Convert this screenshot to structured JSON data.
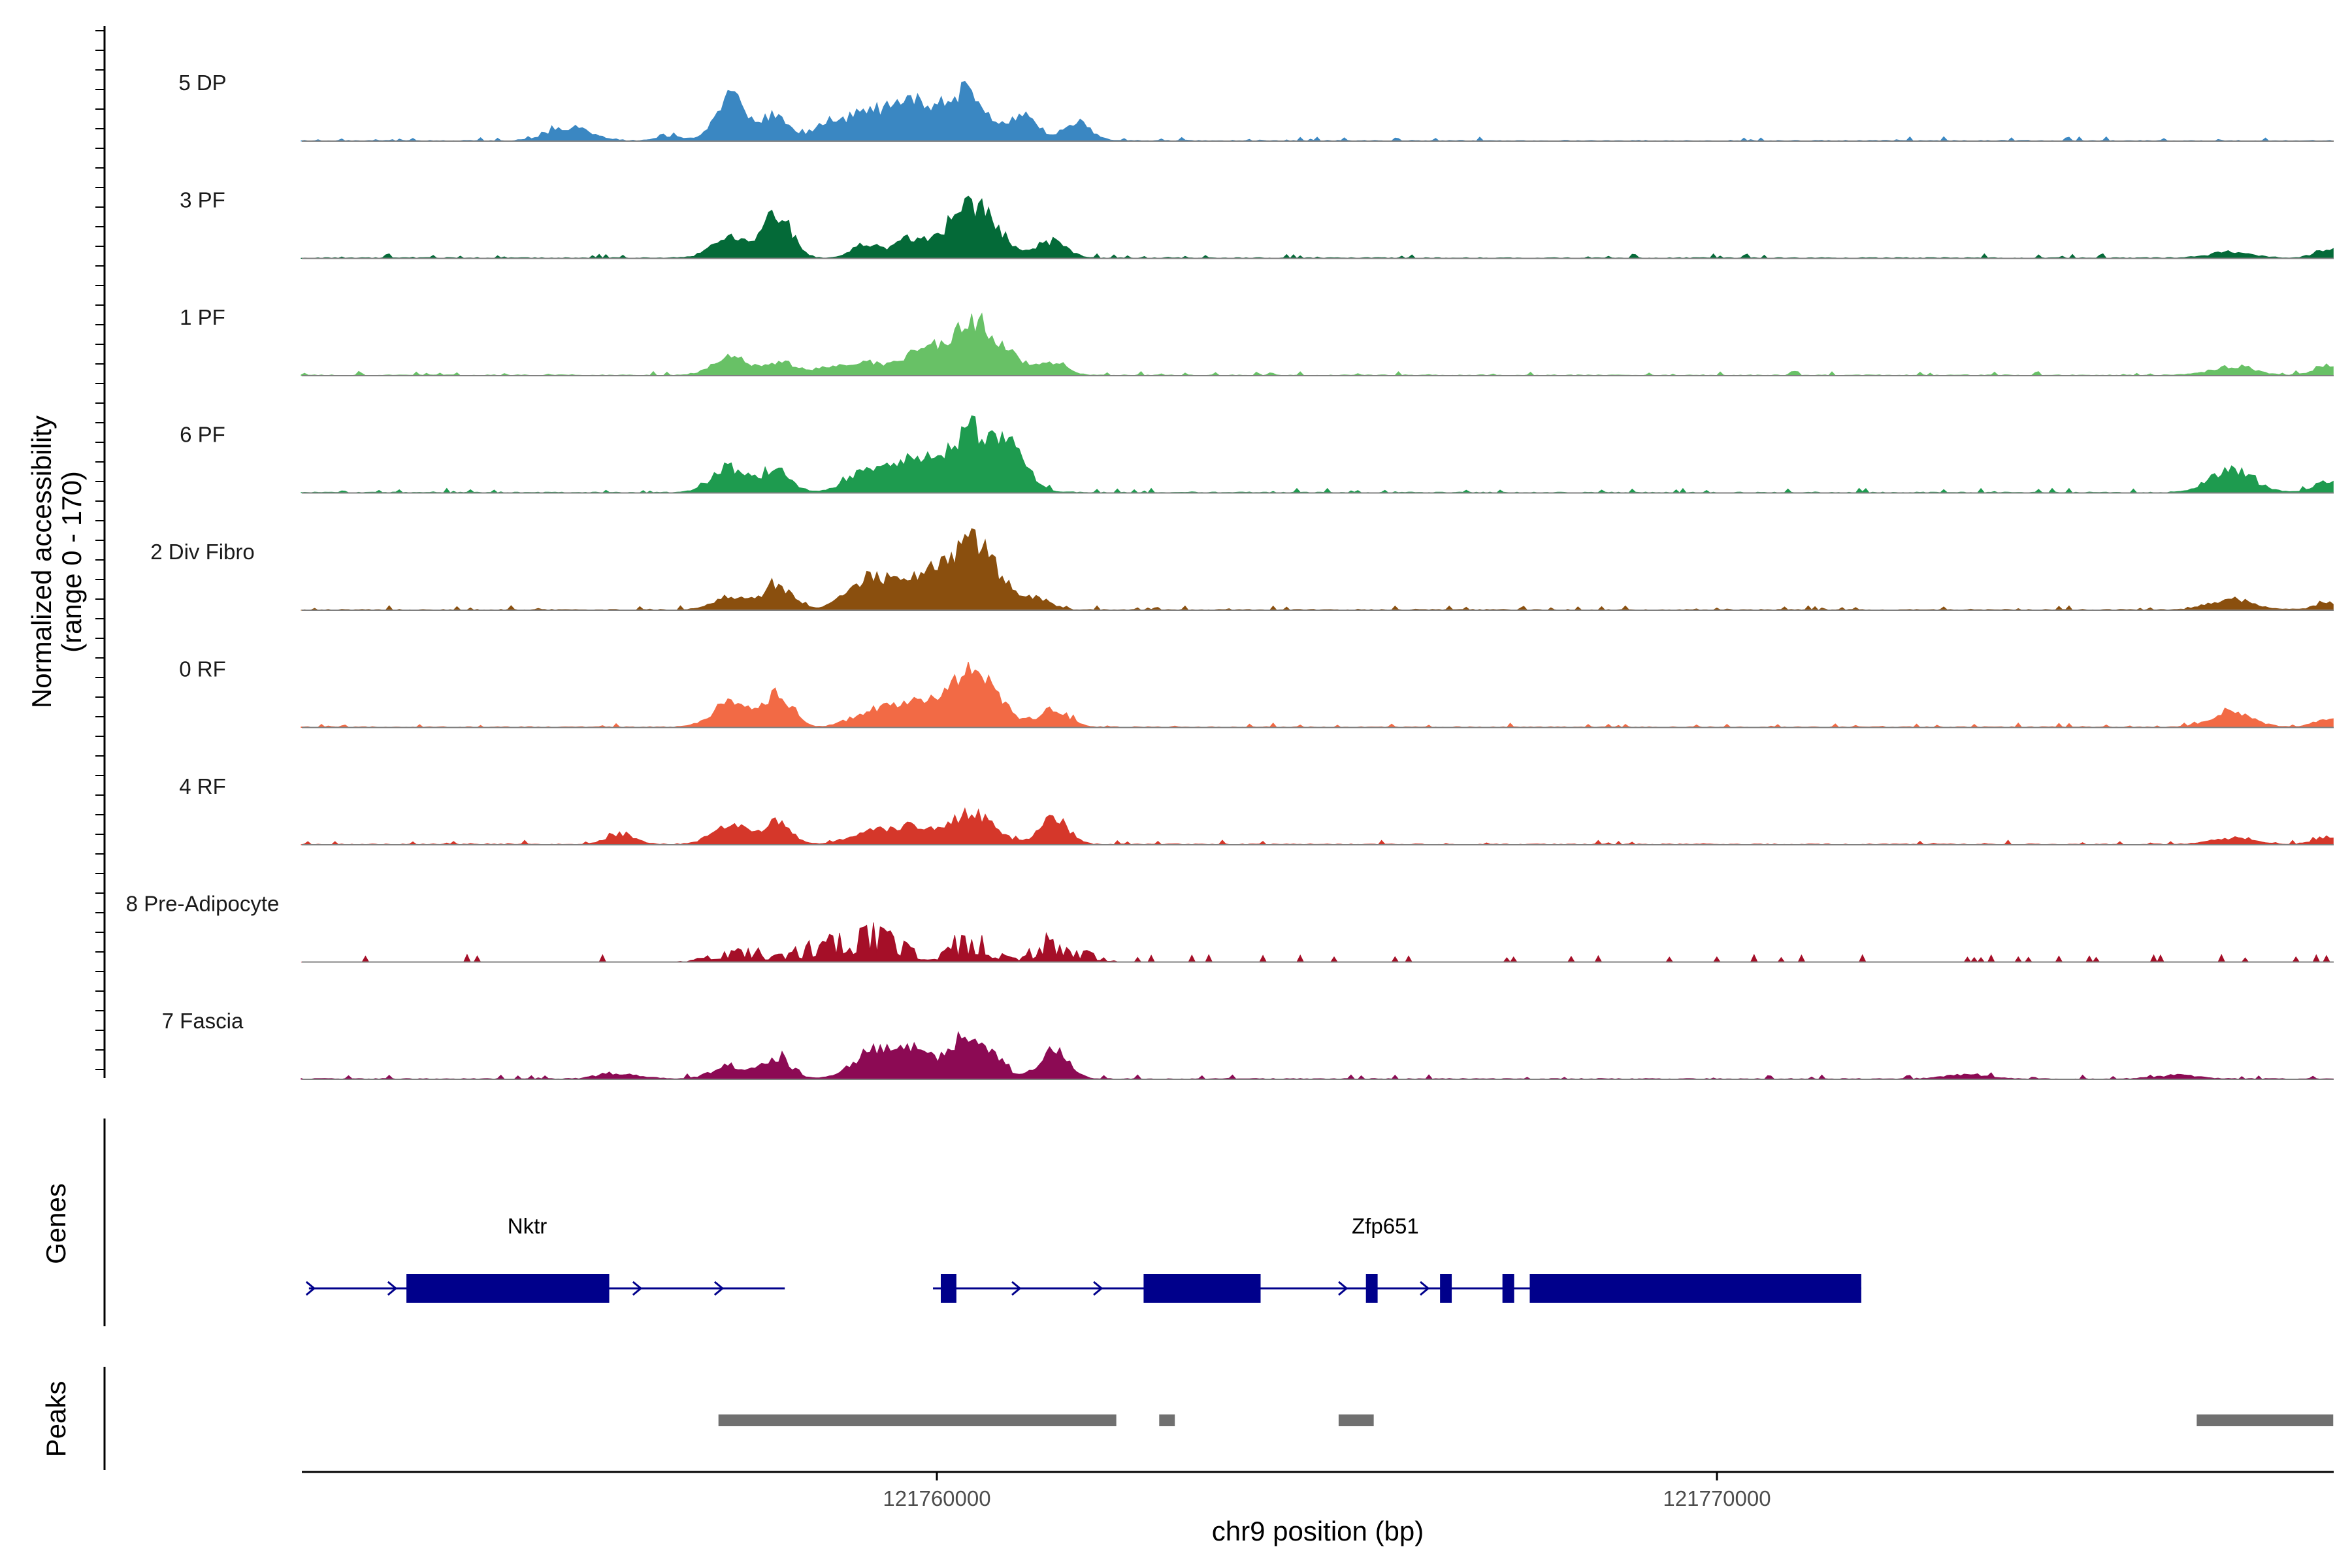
{
  "chart_data": {
    "type": "area",
    "title": "",
    "region": {
      "chromosome": "chr9",
      "start": 121751850,
      "end": 121777900
    },
    "xlabel": "chr9 position (bp)",
    "x_ticks": [
      {
        "value": 121760000,
        "label": "121760000"
      },
      {
        "value": 121770000,
        "label": "121770000"
      }
    ],
    "coverage_ylabel": "Normalized accessibility\n(range 0 - 170)",
    "coverage_ylim": [
      0,
      170
    ],
    "genes_ylabel": "Genes",
    "peaks_ylabel": "Peaks",
    "tracks": [
      {
        "name": "5 DP",
        "color": "#3a87c2",
        "scale": 1.0,
        "peaks": [
          [
            121755300,
            110,
            3
          ],
          [
            121756600,
            34,
            2
          ],
          [
            121757350,
            380,
            2
          ],
          [
            121757900,
            210,
            2
          ],
          [
            121758600,
            150,
            2
          ],
          [
            121759150,
            250,
            3
          ],
          [
            121759700,
            300,
            2.5
          ],
          [
            121760350,
            420,
            3
          ],
          [
            121761100,
            200,
            2
          ],
          [
            121761800,
            150,
            2
          ]
        ]
      },
      {
        "name": "3 PF",
        "color": "#046a38",
        "scale": 1.0,
        "peaks": [
          [
            121757350,
            180,
            2.5
          ],
          [
            121757950,
            365,
            2
          ],
          [
            121759100,
            120,
            2
          ],
          [
            121759650,
            150,
            2
          ],
          [
            121760450,
            460,
            3.5
          ],
          [
            121761500,
            130,
            2
          ],
          [
            121776600,
            50,
            3
          ],
          [
            121777850,
            70,
            2
          ]
        ]
      },
      {
        "name": "1 PF",
        "color": "#68c166",
        "scale": 1.0,
        "peaks": [
          [
            121757350,
            150,
            2.5
          ],
          [
            121757950,
            110,
            2
          ],
          [
            121758600,
            60,
            3
          ],
          [
            121759150,
            100,
            3
          ],
          [
            121759800,
            160,
            2.5
          ],
          [
            121760500,
            440,
            4
          ],
          [
            121761500,
            90,
            2
          ],
          [
            121776600,
            70,
            3
          ],
          [
            121777850,
            80,
            2
          ]
        ]
      },
      {
        "name": "6 PF",
        "color": "#1e9b4f",
        "scale": 1.0,
        "peaks": [
          [
            121757350,
            210,
            2.5
          ],
          [
            121757950,
            190,
            2
          ],
          [
            121759150,
            200,
            3
          ],
          [
            121759700,
            240,
            2.5
          ],
          [
            121760500,
            520,
            4
          ],
          [
            121761000,
            200,
            2
          ],
          [
            121776600,
            190,
            3
          ],
          [
            121777850,
            100,
            2
          ]
        ]
      },
      {
        "name": "2 Div Fibro",
        "color": "#8a4f0e",
        "scale": 1.0,
        "peaks": [
          [
            121757350,
            110,
            2.5
          ],
          [
            121757950,
            200,
            2
          ],
          [
            121759200,
            280,
            3.5
          ],
          [
            121759850,
            200,
            2.5
          ],
          [
            121760450,
            580,
            3.5
          ],
          [
            121761300,
            80,
            2
          ],
          [
            121776600,
            90,
            3
          ],
          [
            121777850,
            60,
            2
          ]
        ]
      },
      {
        "name": "0 RF",
        "color": "#f26a45",
        "scale": 1.0,
        "peaks": [
          [
            121757350,
            210,
            2.5
          ],
          [
            121757950,
            270,
            2
          ],
          [
            121759200,
            150,
            3
          ],
          [
            121759700,
            160,
            2.5
          ],
          [
            121760450,
            460,
            3.5
          ],
          [
            121761500,
            150,
            2
          ],
          [
            121776600,
            120,
            3
          ],
          [
            121777850,
            70,
            2
          ]
        ]
      },
      {
        "name": "4 RF",
        "color": "#d5372a",
        "scale": 1.0,
        "peaks": [
          [
            121755950,
            90,
            2
          ],
          [
            121757350,
            170,
            2.5
          ],
          [
            121757950,
            180,
            2
          ],
          [
            121759150,
            110,
            3
          ],
          [
            121759700,
            140,
            2.5
          ],
          [
            121760450,
            270,
            3
          ],
          [
            121761500,
            220,
            2
          ],
          [
            121776600,
            50,
            3
          ],
          [
            121777850,
            60,
            2
          ]
        ]
      },
      {
        "name": "8 Pre-Adipocyte",
        "color": "#a50f28",
        "scale": 1.0,
        "peaks": [
          [
            121757400,
            120,
            3
          ],
          [
            121758500,
            140,
            4
          ],
          [
            121759200,
            280,
            4
          ],
          [
            121760450,
            210,
            3
          ],
          [
            121761450,
            210,
            2
          ],
          [
            121761900,
            80,
            2
          ]
        ]
      },
      {
        "name": "7 Fascia",
        "color": "#8c0a54",
        "scale": 1.0,
        "peaks": [
          [
            121755950,
            40,
            3
          ],
          [
            121757350,
            110,
            2.5
          ],
          [
            121757950,
            180,
            2
          ],
          [
            121759200,
            230,
            3
          ],
          [
            121759700,
            210,
            2.5
          ],
          [
            121760450,
            400,
            3
          ],
          [
            121761500,
            250,
            2
          ],
          [
            121773200,
            40,
            3
          ],
          [
            121775900,
            30,
            3
          ]
        ]
      }
    ],
    "genes": [
      {
        "name": "Nktr",
        "strand": "+",
        "start": 121751950,
        "end": 121758050,
        "exons": [
          [
            121753200,
            121755800
          ]
        ],
        "label_pos": 121755000
      },
      {
        "name": "Zfp651",
        "strand": "+",
        "start": 121759950,
        "end": 121771850,
        "exons": [
          [
            121760050,
            121760250
          ],
          [
            121762650,
            121764150
          ],
          [
            121765500,
            121765650
          ],
          [
            121766450,
            121766600
          ],
          [
            121767250,
            121767400
          ],
          [
            121767600,
            121771850
          ]
        ],
        "label_pos": 121766000
      }
    ],
    "peak_regions": [
      [
        121757200,
        121762300
      ],
      [
        121762850,
        121763050
      ],
      [
        121765150,
        121765600
      ],
      [
        121776150,
        121777900
      ]
    ]
  }
}
